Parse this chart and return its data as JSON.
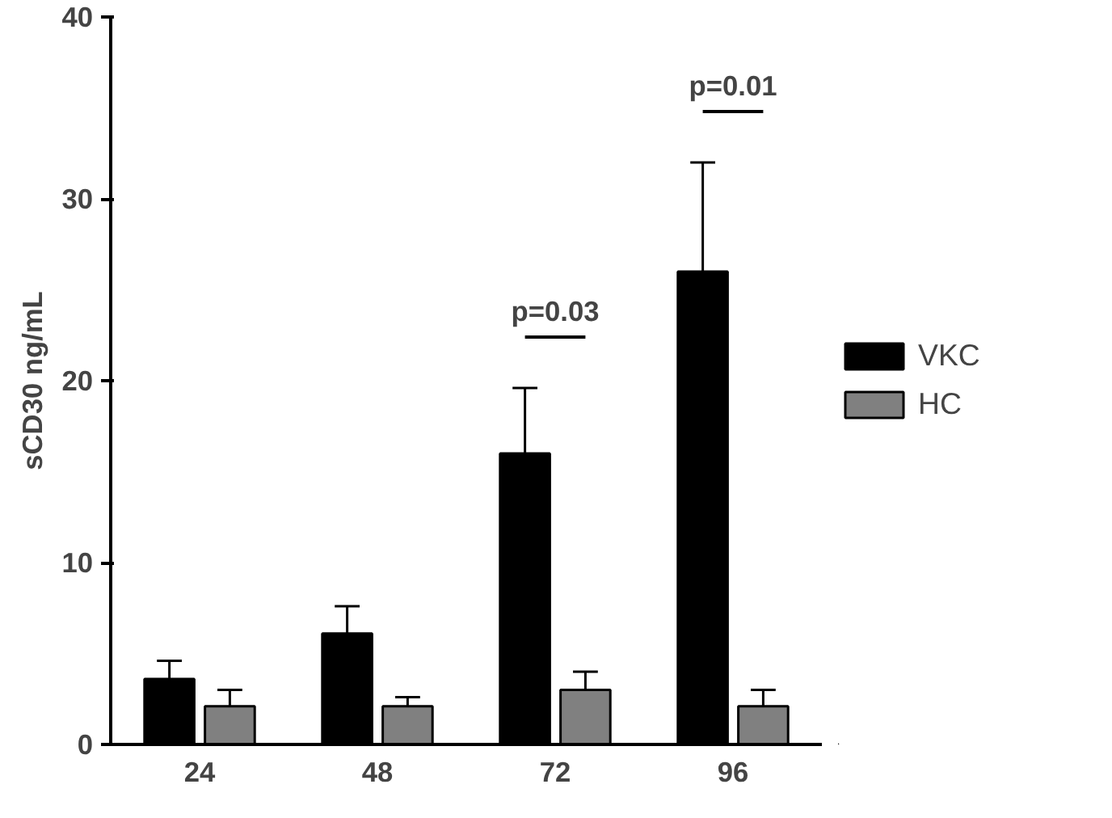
{
  "chart_data": {
    "type": "bar",
    "ylabel": "sCD30 ng/mL",
    "categories": [
      "24",
      "48",
      "72",
      "96"
    ],
    "series": [
      {
        "name": "VKC",
        "color": "#000000",
        "values": [
          3.6,
          6.1,
          16.0,
          26.0
        ],
        "errors": [
          [
            3.6,
            4.6
          ],
          [
            6.1,
            7.6
          ],
          [
            16.0,
            19.6
          ],
          [
            26.0,
            32.0
          ]
        ]
      },
      {
        "name": "HC",
        "color": "#808080",
        "values": [
          2.1,
          2.1,
          3.0,
          2.1
        ],
        "errors": [
          [
            2.1,
            3.0
          ],
          [
            2.1,
            2.6
          ],
          [
            3.0,
            4.0
          ],
          [
            2.1,
            3.0
          ]
        ]
      }
    ],
    "ylim": [
      0,
      40
    ],
    "yticks": [
      0,
      10,
      20,
      30,
      40
    ],
    "grid": false,
    "legend": "right",
    "annotations": [
      "p=0.03",
      "p=0.01"
    ]
  }
}
